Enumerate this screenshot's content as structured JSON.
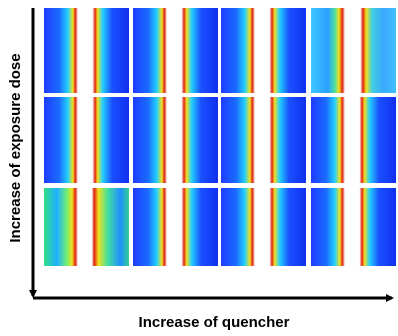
{
  "labels": {
    "y_axis": "Increase of exposure dose",
    "x_axis": "Increase of quencher"
  }
}
